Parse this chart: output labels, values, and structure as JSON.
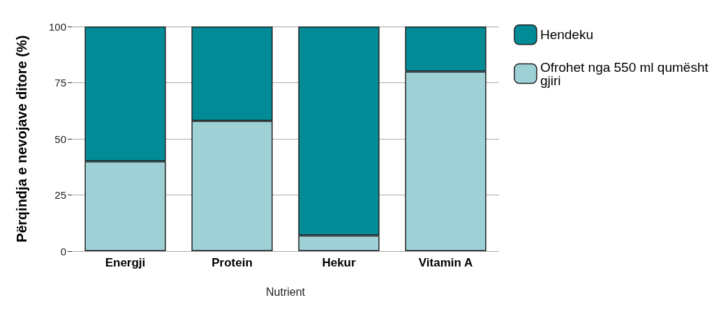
{
  "chart_data": {
    "type": "bar",
    "stacked": true,
    "xlabel": "Nutrient",
    "ylabel": "Përqindja e nevojave ditore (%)",
    "categories": [
      "Energji",
      "Protein",
      "Hekur",
      "Vitamin A"
    ],
    "series": [
      {
        "name": "Ofrohet nga 550 ml qumësht gjiri",
        "color": "#9dd1d6",
        "values": [
          40,
          58,
          7,
          80
        ]
      },
      {
        "name": "Hendeku",
        "color": "#008b96",
        "values": [
          60,
          42,
          93,
          20
        ]
      }
    ],
    "ylim": [
      0,
      100
    ],
    "yticks": [
      0,
      25,
      50,
      75,
      100
    ],
    "grid": "y",
    "legend": "top right"
  }
}
